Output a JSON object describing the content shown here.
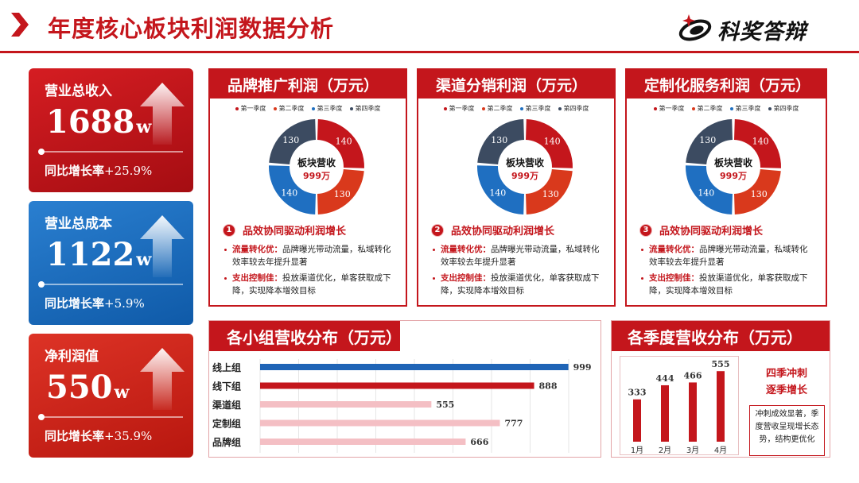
{
  "header": {
    "title": "年度核心板块利润数据分析",
    "logo_text": "科奖答辩"
  },
  "kpis": [
    {
      "label": "营业总收入",
      "value": "1688",
      "unit": "w",
      "growth_label": "同比增长率",
      "growth_value": "+25.9%",
      "theme": "red"
    },
    {
      "label": "营业总成本",
      "value": "1122",
      "unit": "w",
      "growth_label": "同比增长率",
      "growth_value": "+5.9%",
      "theme": "blue"
    },
    {
      "label": "净利润值",
      "value": "550",
      "unit": "w",
      "growth_label": "同比增长率",
      "growth_value": "+35.9%",
      "theme": "red2"
    }
  ],
  "legend": [
    "第一季度",
    "第二季度",
    "第三季度",
    "第四季度"
  ],
  "colors": {
    "brand_red": "#c4161c",
    "q1": "#c4161c",
    "q2": "#d9391c",
    "q3": "#1f6fc1",
    "q4": "#3c4b61",
    "bar_dark_blue": "#1f64b6",
    "bar_dark_red": "#c4161c",
    "bar_pink": "#f4bfc4"
  },
  "panels": [
    {
      "title": "品牌推广利润（万元）",
      "center_title": "板块营收",
      "center_value": "999万",
      "section_num": "1",
      "section_title": "品效协同驱动利润增长",
      "bullets": [
        {
          "key": "流量转化优：",
          "text": "品牌曝光带动流量，私域转化效率较去年提升显著"
        },
        {
          "key": "支出控制佳：",
          "text": "投放渠道优化，单客获取成下降，实现降本增效目标"
        }
      ]
    },
    {
      "title": "渠道分销利润（万元）",
      "center_title": "板块营收",
      "center_value": "999万",
      "section_num": "2",
      "section_title": "品效协同驱动利润增长",
      "bullets": [
        {
          "key": "流量转化优：",
          "text": "品牌曝光带动流量，私域转化效率较去年提升显著"
        },
        {
          "key": "支出控制佳：",
          "text": "投放渠道优化，单客获取成下降，实现降本增效目标"
        }
      ]
    },
    {
      "title": "定制化服务利润（万元）",
      "center_title": "板块营收",
      "center_value": "999万",
      "section_num": "3",
      "section_title": "品效协同驱动利润增长",
      "bullets": [
        {
          "key": "流量转化优：",
          "text": "品牌曝光带动流量，私域转化效率较去年提升显著"
        },
        {
          "key": "支出控制佳：",
          "text": "投放渠道优化，单客获取成下降，实现降本增效目标"
        }
      ]
    }
  ],
  "group_panel": {
    "title": "各小组营收分布（万元）"
  },
  "season_panel": {
    "title": "各季度营收分布（万元）",
    "side_title_line1": "四季冲刺",
    "side_title_line2": "逐季增长",
    "note": "冲刺成效显著，季度营收呈现增长态势，结构更优化"
  },
  "chart_data": [
    {
      "type": "pie",
      "title": "品牌推广利润（万元）",
      "categories": [
        "第一季度",
        "第二季度",
        "第三季度",
        "第四季度"
      ],
      "values": [
        140,
        130,
        140,
        130
      ]
    },
    {
      "type": "pie",
      "title": "渠道分销利润（万元）",
      "categories": [
        "第一季度",
        "第二季度",
        "第三季度",
        "第四季度"
      ],
      "values": [
        140,
        130,
        140,
        130
      ]
    },
    {
      "type": "pie",
      "title": "定制化服务利润（万元）",
      "categories": [
        "第一季度",
        "第二季度",
        "第三季度",
        "第四季度"
      ],
      "values": [
        140,
        130,
        140,
        130
      ]
    },
    {
      "type": "bar",
      "orientation": "horizontal",
      "title": "各小组营收分布（万元）",
      "categories": [
        "线上组",
        "线下组",
        "渠道组",
        "定制组",
        "品牌组"
      ],
      "values": [
        999,
        888,
        555,
        777,
        666
      ],
      "xlim": [
        0,
        1000
      ],
      "grid": true
    },
    {
      "type": "bar",
      "title": "各季度营收分布（万元）",
      "categories": [
        "1月",
        "2月",
        "3月",
        "4月"
      ],
      "values": [
        333,
        444,
        466,
        555
      ],
      "ylim": [
        0,
        600
      ]
    }
  ]
}
